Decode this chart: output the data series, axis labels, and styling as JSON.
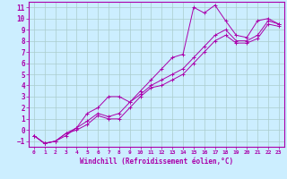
{
  "xlabel": "Windchill (Refroidissement éolien,°C)",
  "bg_color": "#cceeff",
  "grid_color": "#aacccc",
  "line_color": "#aa00aa",
  "xlim": [
    -0.5,
    23.5
  ],
  "ylim": [
    -1.5,
    11.5
  ],
  "xticks": [
    0,
    1,
    2,
    3,
    4,
    5,
    6,
    7,
    8,
    9,
    10,
    11,
    12,
    13,
    14,
    15,
    16,
    17,
    18,
    19,
    20,
    21,
    22,
    23
  ],
  "yticks": [
    -1,
    0,
    1,
    2,
    3,
    4,
    5,
    6,
    7,
    8,
    9,
    10,
    11
  ],
  "series1": [
    [
      0,
      -0.5
    ],
    [
      1,
      -1.2
    ],
    [
      2,
      -1.0
    ],
    [
      3,
      -0.5
    ],
    [
      4,
      0.2
    ],
    [
      5,
      1.5
    ],
    [
      6,
      2.0
    ],
    [
      7,
      3.0
    ],
    [
      8,
      3.0
    ],
    [
      9,
      2.5
    ],
    [
      10,
      3.5
    ],
    [
      11,
      4.5
    ],
    [
      12,
      5.5
    ],
    [
      13,
      6.5
    ],
    [
      14,
      6.8
    ],
    [
      15,
      11.0
    ],
    [
      16,
      10.5
    ],
    [
      17,
      11.2
    ],
    [
      18,
      9.8
    ],
    [
      19,
      8.5
    ],
    [
      20,
      8.3
    ],
    [
      21,
      9.8
    ],
    [
      22,
      10.0
    ],
    [
      23,
      9.5
    ]
  ],
  "series2": [
    [
      0,
      -0.5
    ],
    [
      1,
      -1.2
    ],
    [
      2,
      -1.0
    ],
    [
      3,
      -0.3
    ],
    [
      4,
      0.2
    ],
    [
      5,
      0.8
    ],
    [
      6,
      1.5
    ],
    [
      7,
      1.2
    ],
    [
      8,
      1.5
    ],
    [
      9,
      2.5
    ],
    [
      10,
      3.2
    ],
    [
      11,
      4.0
    ],
    [
      12,
      4.5
    ],
    [
      13,
      5.0
    ],
    [
      14,
      5.5
    ],
    [
      15,
      6.5
    ],
    [
      16,
      7.5
    ],
    [
      17,
      8.5
    ],
    [
      18,
      9.0
    ],
    [
      19,
      8.0
    ],
    [
      20,
      8.0
    ],
    [
      21,
      8.5
    ],
    [
      22,
      9.8
    ],
    [
      23,
      9.5
    ]
  ],
  "series3": [
    [
      0,
      -0.5
    ],
    [
      1,
      -1.2
    ],
    [
      2,
      -1.0
    ],
    [
      3,
      -0.3
    ],
    [
      4,
      0.0
    ],
    [
      5,
      0.5
    ],
    [
      6,
      1.3
    ],
    [
      7,
      1.0
    ],
    [
      8,
      1.0
    ],
    [
      9,
      2.0
    ],
    [
      10,
      3.0
    ],
    [
      11,
      3.8
    ],
    [
      12,
      4.0
    ],
    [
      13,
      4.5
    ],
    [
      14,
      5.0
    ],
    [
      15,
      6.0
    ],
    [
      16,
      7.0
    ],
    [
      17,
      8.0
    ],
    [
      18,
      8.5
    ],
    [
      19,
      7.8
    ],
    [
      20,
      7.8
    ],
    [
      21,
      8.2
    ],
    [
      22,
      9.5
    ],
    [
      23,
      9.3
    ]
  ]
}
